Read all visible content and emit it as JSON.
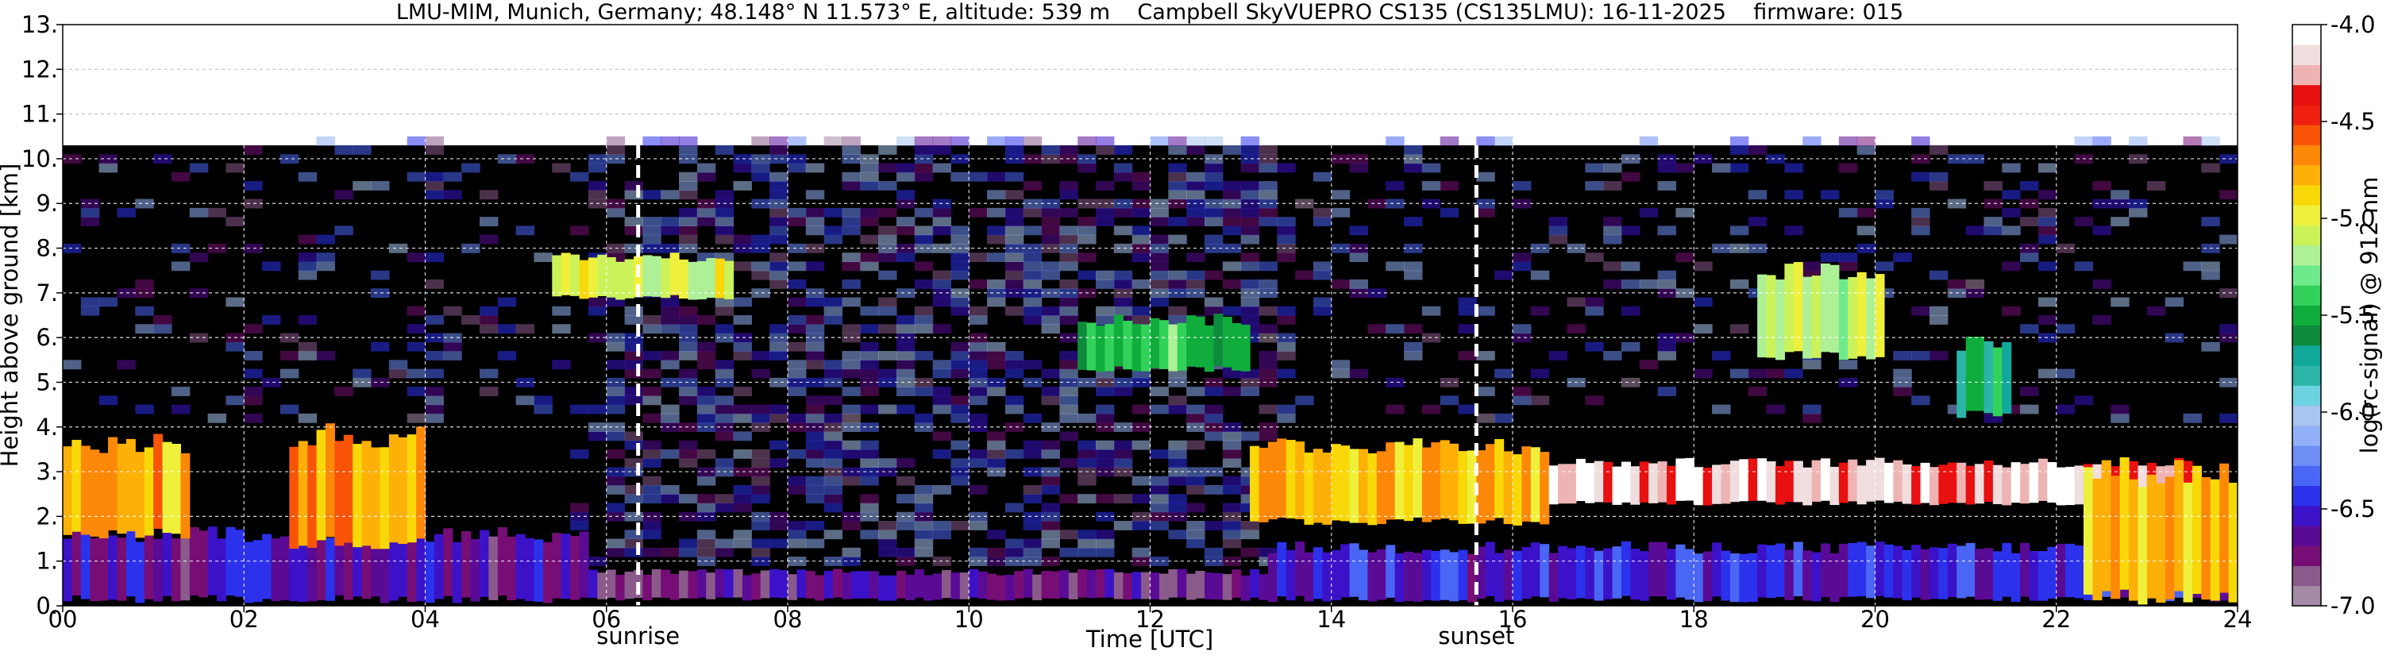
{
  "chart_data": {
    "type": "heatmap",
    "title": "LMU-MIM, Munich, Germany; 48.148° N 11.573° E, altitude: 539 m    Campbell SkyVUEPRO CS135 (CS135LMU): 16-11-2025    firmware: 015",
    "xlabel": "Time [UTC]",
    "ylabel": "Height above ground [km]",
    "xlim": [
      0,
      24
    ],
    "ylim": [
      0,
      13
    ],
    "x_ticks": [
      0,
      2,
      4,
      6,
      8,
      10,
      12,
      14,
      16,
      18,
      20,
      22,
      24
    ],
    "x_tick_labels": [
      "00",
      "02",
      "04",
      "06",
      "08",
      "10",
      "12",
      "14",
      "16",
      "18",
      "20",
      "22",
      "24"
    ],
    "y_ticks": [
      0,
      1,
      2,
      3,
      4,
      5,
      6,
      7,
      8,
      9,
      10,
      11,
      12,
      13
    ],
    "y_tick_labels": [
      "0.",
      "1.",
      "2.",
      "3.",
      "4.",
      "5.",
      "6.",
      "7.",
      "8.",
      "9.",
      "10.",
      "11.",
      "12.",
      "13."
    ],
    "grid": true,
    "data_top_km": 10.3,
    "events": [
      {
        "label": "sunrise",
        "x": 6.35
      },
      {
        "label": "sunset",
        "x": 15.6
      }
    ],
    "colorbar": {
      "label": "log(rc-signal) @ 912 nm",
      "vmin": -7.0,
      "vmax": -4.0,
      "tick_values": [
        -4.0,
        -4.5,
        -5.0,
        -5.5,
        -6.0,
        -6.5,
        -7.0
      ],
      "tick_labels": [
        "-4.0",
        "-4.5",
        "-5.0",
        "-5.5",
        "-6.0",
        "-6.5",
        "-7.0"
      ],
      "colors": [
        "#a58aa5",
        "#8a5a8a",
        "#760e76",
        "#5a0b96",
        "#3c12c8",
        "#2c32ec",
        "#4a66f4",
        "#6e8ef6",
        "#92b0f6",
        "#a8c4f0",
        "#6cd2e0",
        "#2cb4a8",
        "#10a89a",
        "#0d8a3c",
        "#10ac3c",
        "#32d25a",
        "#6eea8c",
        "#aef096",
        "#ccf25a",
        "#eef03c",
        "#f8d808",
        "#fcb008",
        "#fc8808",
        "#f85408",
        "#f02010",
        "#e81010",
        "#eeb4b4",
        "#f0dede",
        "#ffffff"
      ]
    },
    "features": [
      {
        "name": "aerosol layer",
        "t_start": 0.0,
        "t_end": 5.8,
        "base_km": 0.15,
        "top_km": 1.6,
        "value": -6.6
      },
      {
        "name": "aerosol layer",
        "t_start": 5.8,
        "t_end": 13.3,
        "base_km": 0.15,
        "top_km": 0.75,
        "value": -6.7
      },
      {
        "name": "aerosol layer",
        "t_start": 13.3,
        "t_end": 24.0,
        "base_km": 0.15,
        "top_km": 1.3,
        "value": -6.5
      },
      {
        "name": "low cloud",
        "t_start": 0.0,
        "t_end": 1.4,
        "base_km": 1.6,
        "top_km": 3.6,
        "value": -4.8
      },
      {
        "name": "low cloud",
        "t_start": 2.5,
        "t_end": 4.0,
        "base_km": 1.4,
        "top_km": 3.8,
        "value": -4.7
      },
      {
        "name": "cirrus",
        "t_start": 5.4,
        "t_end": 7.4,
        "base_km": 6.9,
        "top_km": 7.8,
        "value": -5.0
      },
      {
        "name": "cirrus",
        "t_start": 11.2,
        "t_end": 13.1,
        "base_km": 5.3,
        "top_km": 6.4,
        "value": -5.4
      },
      {
        "name": "cloud",
        "t_start": 13.1,
        "t_end": 16.4,
        "base_km": 1.9,
        "top_km": 3.6,
        "value": -4.8
      },
      {
        "name": "thin layer",
        "t_start": 16.4,
        "t_end": 23.5,
        "base_km": 2.3,
        "top_km": 3.2,
        "value": -4.2
      },
      {
        "name": "cirrus",
        "t_start": 18.7,
        "t_end": 20.1,
        "base_km": 5.6,
        "top_km": 7.5,
        "value": -5.1
      },
      {
        "name": "cirrus",
        "t_start": 20.9,
        "t_end": 21.5,
        "base_km": 4.3,
        "top_km": 5.9,
        "value": -5.6
      },
      {
        "name": "low cloud",
        "t_start": 22.3,
        "t_end": 24.0,
        "base_km": 0.2,
        "top_km": 3.0,
        "value": -4.8
      }
    ]
  }
}
